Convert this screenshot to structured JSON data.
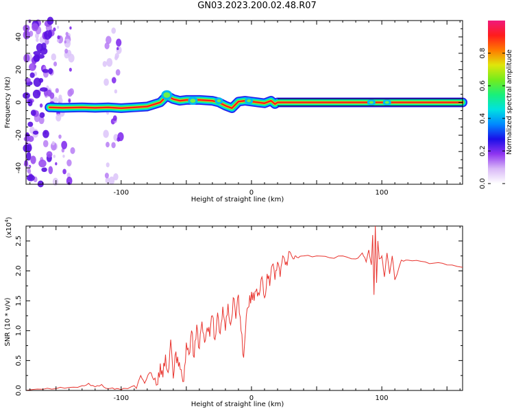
{
  "title": "GN03.2023.200.02.48.R07",
  "chart_data": [
    {
      "type": "heatmap",
      "xlabel": "Height of straight line (km)",
      "ylabel": "Frequency (Hz)",
      "xlim": [
        -173,
        162
      ],
      "ylim": [
        -50,
        50
      ],
      "xticks": [
        -100,
        0,
        100
      ],
      "yticks": [
        -40,
        -20,
        0,
        20,
        40
      ],
      "centerline": {
        "x": [
          -155,
          -145,
          -130,
          -120,
          -110,
          -100,
          -90,
          -80,
          -70,
          -65,
          -60,
          -55,
          -50,
          -40,
          -30,
          -25,
          -20,
          -15,
          -10,
          -5,
          0,
          5,
          10,
          15,
          18,
          20,
          30,
          50,
          100,
          162
        ],
        "y": [
          -3,
          -3.3,
          -3,
          -3.3,
          -3,
          -3.5,
          -3,
          -2.5,
          0,
          4,
          2,
          1,
          1.5,
          1.5,
          1,
          0,
          -2,
          -3.5,
          0.5,
          1,
          0.5,
          0,
          -0.5,
          1,
          -1,
          0,
          0,
          0,
          0,
          0
        ]
      },
      "colorbar": {
        "label": "Normalized spectral amplitude",
        "ticks": [
          "0.0",
          "0.2",
          "0.4",
          "0.6",
          "0.8"
        ],
        "range": [
          0,
          1
        ],
        "colors": [
          "#ffffff",
          "#d9b9f7",
          "#8f35f0",
          "#1b0fe8",
          "#0088ff",
          "#00e2e0",
          "#19f07a",
          "#74ec1c",
          "#e0e60a",
          "#ff7a00",
          "#ff1c1c",
          "#f01a7c"
        ]
      }
    },
    {
      "type": "line",
      "xlabel": "Height of straight line (km)",
      "ylabel": "SNR (10 * v/v)",
      "yscale_label": "(x10",
      "yscale_exp": "4",
      "xlim": [
        -173,
        162
      ],
      "ylim": [
        0,
        2.75
      ],
      "xticks": [
        -100,
        0,
        100
      ],
      "yticks": [
        "0.0",
        "0.5",
        "1.0",
        "1.5",
        "2.0",
        "2.5"
      ],
      "color": "#e8322c",
      "x": [
        -173,
        -160,
        -150,
        -140,
        -130,
        -125,
        -120,
        -115,
        -110,
        -105,
        -100,
        -95,
        -90,
        -85,
        -82,
        -78,
        -75,
        -72,
        -70,
        -68,
        -66,
        -64,
        -62,
        -60,
        -58,
        -56,
        -54,
        -52,
        -50,
        -48,
        -46,
        -44,
        -42,
        -40,
        -38,
        -36,
        -34,
        -32,
        -30,
        -28,
        -26,
        -24,
        -22,
        -20,
        -18,
        -16,
        -14,
        -12,
        -10,
        -8,
        -6,
        -4,
        -2,
        0,
        2,
        4,
        6,
        8,
        10,
        12,
        14,
        16,
        18,
        20,
        22,
        24,
        26,
        28,
        30,
        32,
        34,
        36,
        40,
        50,
        60,
        70,
        80,
        85,
        88,
        90,
        92,
        93,
        94,
        95,
        96,
        97,
        98,
        100,
        102,
        104,
        106,
        108,
        110,
        115,
        120,
        130,
        140,
        150,
        162
      ],
      "y": [
        0.0,
        0.02,
        0.03,
        0.05,
        0.08,
        0.12,
        0.06,
        0.1,
        0.03,
        0.02,
        0.01,
        0.03,
        0.08,
        0.25,
        0.12,
        0.3,
        0.18,
        0.1,
        0.45,
        0.22,
        0.6,
        0.3,
        0.85,
        0.2,
        0.65,
        0.4,
        0.35,
        0.15,
        0.8,
        0.6,
        1.0,
        0.55,
        1.1,
        0.7,
        1.15,
        0.8,
        1.05,
        0.9,
        1.25,
        0.85,
        1.3,
        0.95,
        1.4,
        1.0,
        1.45,
        1.1,
        1.55,
        1.2,
        1.6,
        1.0,
        0.55,
        1.25,
        1.4,
        1.65,
        1.5,
        1.7,
        1.6,
        1.9,
        1.55,
        1.95,
        1.75,
        2.1,
        1.85,
        2.15,
        1.9,
        2.25,
        2.1,
        2.2,
        2.3,
        2.2,
        2.25,
        2.22,
        2.25,
        2.25,
        2.22,
        2.25,
        2.2,
        2.3,
        2.15,
        2.35,
        2.1,
        2.6,
        1.6,
        2.75,
        1.8,
        2.5,
        2.2,
        2.25,
        1.9,
        2.3,
        1.95,
        2.25,
        1.85,
        2.18,
        2.18,
        2.16,
        2.13,
        2.1,
        2.06
      ]
    }
  ]
}
